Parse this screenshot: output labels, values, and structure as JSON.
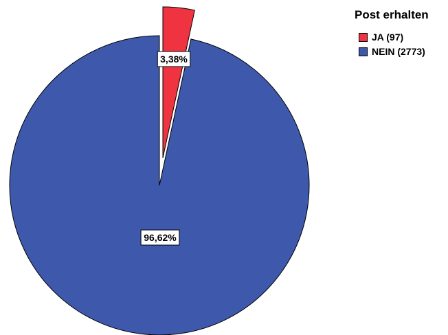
{
  "chart_data": {
    "type": "pie",
    "legend_title": "Post erhalten",
    "legend_position": "top-right",
    "slices": [
      {
        "name": "JA (97)",
        "count": 97,
        "percent": 3.38,
        "percent_label": "3,38%",
        "color": "#ef3340",
        "exploded": true
      },
      {
        "name": "NEIN (2773)",
        "count": 2773,
        "percent": 96.62,
        "percent_label": "96,62%",
        "color": "#3e58ab",
        "exploded": false
      }
    ]
  }
}
